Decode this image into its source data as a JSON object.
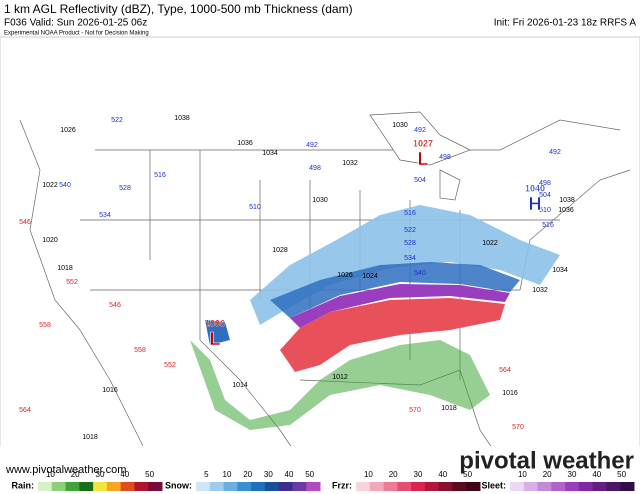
{
  "header": {
    "title": "1 km AGL Reflectivity (dBZ), Type, 1000-500 mb Thickness (dam)",
    "valid": "F036 Valid: Sun 2026-01-25 06z",
    "init": "Init: Fri 2026-01-23 18z RRFS A",
    "note": "Experimental NOAA Product - Not for Decision Making"
  },
  "map": {
    "centers": [
      {
        "letter": "L",
        "value": 1027
      },
      {
        "letter": "L",
        "value": 1006
      },
      {
        "letter": "H",
        "value": 1040
      }
    ],
    "isobar_labels": [
      1026,
      1022,
      1020,
      1018,
      1016,
      1018,
      1038,
      1036,
      1034,
      1032,
      1030,
      1030,
      1028,
      1026,
      1024,
      1022,
      1034,
      1032,
      1036,
      1038,
      1014,
      1012,
      1018,
      1016
    ],
    "thickness_labels": [
      522,
      516,
      540,
      534,
      528,
      510,
      492,
      498,
      504,
      516,
      522,
      528,
      534,
      540,
      492,
      498,
      492,
      498,
      504,
      510,
      516
    ],
    "warm_thickness_labels": [
      546,
      552,
      558,
      564,
      552,
      558,
      570,
      564,
      570,
      546
    ]
  },
  "footer": {
    "url": "www.pivotalweather.com",
    "brand": "pivotal weather"
  },
  "legend": [
    {
      "name": "Rain:",
      "ticks": [
        10,
        20,
        30,
        40,
        50
      ],
      "colors": [
        "#d8f0c8",
        "#8ed07a",
        "#3fa53a",
        "#1a6e1a",
        "#f5e43b",
        "#f5a623",
        "#e34a1d",
        "#b0142a",
        "#7a0a3a"
      ]
    },
    {
      "name": "Snow:",
      "ticks": [
        5,
        10,
        20,
        30,
        40,
        50
      ],
      "colors": [
        "#cfe6f7",
        "#9fcbee",
        "#6aaee2",
        "#3a8fd2",
        "#1f6fbf",
        "#1a4f9a",
        "#3a2f8c",
        "#6a3aa8",
        "#b04ac0"
      ]
    },
    {
      "name": "Frzr:",
      "ticks": [
        10,
        20,
        30,
        40,
        50
      ],
      "colors": [
        "#fbd3dc",
        "#f5a6b8",
        "#ee7a95",
        "#e54d72",
        "#d62650",
        "#b0173c",
        "#86102e",
        "#5c0a20",
        "#400615"
      ]
    },
    {
      "name": "Sleet:",
      "ticks": [
        10,
        20,
        30,
        40,
        50
      ],
      "colors": [
        "#ecd8f2",
        "#d8b0e6",
        "#c38ad8",
        "#ae64ca",
        "#993ebc",
        "#7f2aa2",
        "#641f84",
        "#4a1766",
        "#300e48"
      ]
    }
  ]
}
